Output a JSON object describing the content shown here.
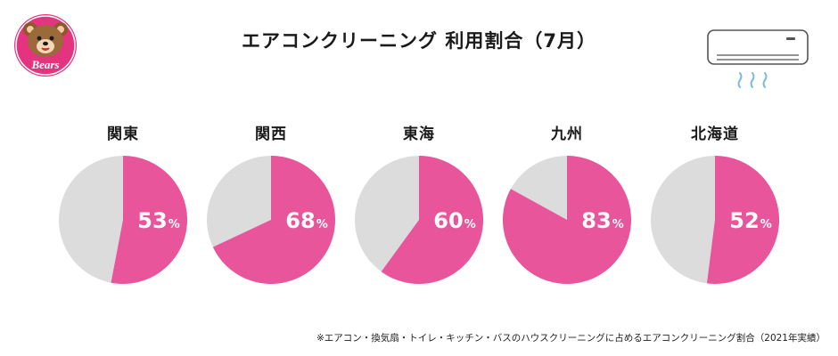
{
  "logo": {
    "text": "Bears",
    "color": "#e5347f"
  },
  "chart_data": {
    "type": "pie",
    "title": "エアコンクリーニング 利用割合（7月）",
    "categories": [
      "関東",
      "関西",
      "東海",
      "九州",
      "北海道"
    ],
    "series": [
      {
        "values": [
          53,
          68,
          60,
          83,
          52
        ]
      }
    ],
    "unit": "%",
    "colors": {
      "share": "#e9559a",
      "remainder": "#dcdcdc",
      "label": "#ffffff"
    }
  },
  "icons": {
    "air_conditioner": "air-conditioner-icon"
  },
  "footnote": "※エアコン・換気扇・トイレ・キッチン・バスのハウスクリーニングに占めるエアコンクリーニング割合（2021年実績）"
}
